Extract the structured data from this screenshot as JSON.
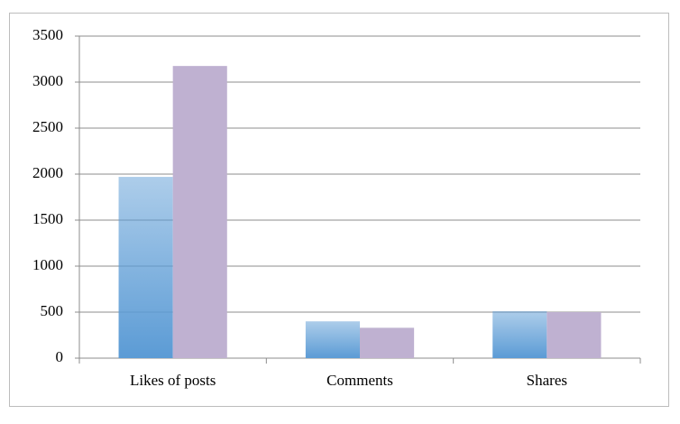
{
  "chart_data": {
    "type": "bar",
    "categories": [
      "Likes of posts",
      "Comments",
      "Shares"
    ],
    "series": [
      {
        "color": "#5b9bd5",
        "gradient": true,
        "values": [
          1970,
          400,
          510
        ]
      },
      {
        "color": "#bfb1d1",
        "values": [
          3175,
          330,
          500
        ]
      }
    ],
    "ylim": [
      0,
      3500
    ],
    "yticks": [
      0,
      500,
      1000,
      1500,
      2000,
      2500,
      3000,
      3500
    ],
    "grid": true
  }
}
